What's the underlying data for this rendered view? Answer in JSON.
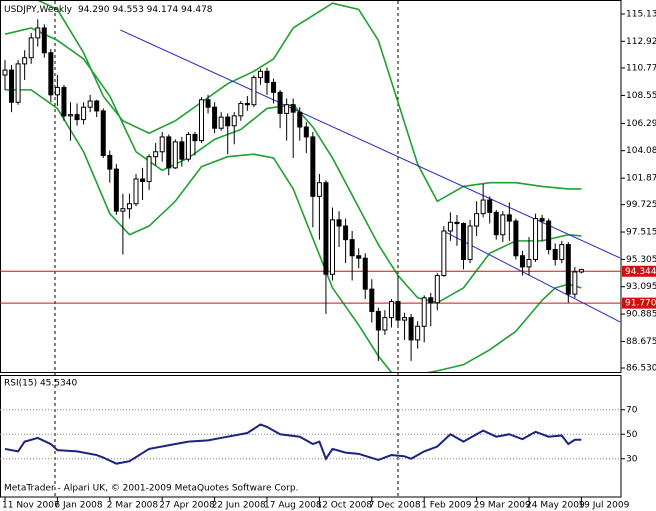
{
  "chart_data": {
    "type": "candlestick",
    "title": "USDJPY,Weekly",
    "quote": "94.290 94.553 94.174 94.478",
    "categories": [
      "11 Nov 2007",
      null,
      null,
      null,
      null,
      null,
      null,
      null,
      "6 Jan 2008",
      null,
      null,
      null,
      null,
      null,
      null,
      null,
      "2 Mar 2008",
      null,
      null,
      null,
      null,
      null,
      null,
      null,
      "27 Apr 2008",
      null,
      null,
      null,
      null,
      null,
      null,
      null,
      "22 Jun 2008",
      null,
      null,
      null,
      null,
      null,
      null,
      null,
      "17 Aug 2008",
      null,
      null,
      null,
      null,
      null,
      null,
      null,
      "12 Oct 2008",
      null,
      null,
      null,
      null,
      null,
      null,
      null,
      "7 Dec 2008",
      null,
      null,
      null,
      null,
      null,
      null,
      null,
      "1 Feb 2009",
      null,
      null,
      null,
      null,
      null,
      null,
      null,
      "29 Mar 2009",
      null,
      null,
      null,
      null,
      null,
      null,
      null,
      "24 May 2009",
      null,
      null,
      null,
      null,
      null,
      null,
      null,
      "19 Jul 2009"
    ],
    "ohlc": [
      [
        110.2,
        111.4,
        109.0,
        110.6
      ],
      [
        110.6,
        111.0,
        107.2,
        108.0
      ],
      [
        108.0,
        111.4,
        107.8,
        111.1
      ],
      [
        111.1,
        112.2,
        109.8,
        111.6
      ],
      [
        111.6,
        113.6,
        111.1,
        113.2
      ],
      [
        113.2,
        114.7,
        112.5,
        114.0
      ],
      [
        114.0,
        114.3,
        111.6,
        112.0
      ],
      [
        112.0,
        112.3,
        108.0,
        108.6
      ],
      [
        108.6,
        110.2,
        107.7,
        109.2
      ],
      [
        109.2,
        109.4,
        106.5,
        106.9
      ],
      [
        106.9,
        108.0,
        104.9,
        107.0
      ],
      [
        107.0,
        107.9,
        106.1,
        106.6
      ],
      [
        106.6,
        108.0,
        106.2,
        107.6
      ],
      [
        107.6,
        108.6,
        107.2,
        108.1
      ],
      [
        108.1,
        108.2,
        106.8,
        107.3
      ],
      [
        107.3,
        107.5,
        103.5,
        103.7
      ],
      [
        103.7,
        104.1,
        101.5,
        102.6
      ],
      [
        102.6,
        103.0,
        98.9,
        99.2
      ],
      [
        99.2,
        100.6,
        95.7,
        99.4
      ],
      [
        99.4,
        100.6,
        98.6,
        99.8
      ],
      [
        99.8,
        102.2,
        99.6,
        101.8
      ],
      [
        101.8,
        102.7,
        100.1,
        101.6
      ],
      [
        101.6,
        103.8,
        100.9,
        103.6
      ],
      [
        103.6,
        104.7,
        102.9,
        104.0
      ],
      [
        104.0,
        105.6,
        103.2,
        105.2
      ],
      [
        105.2,
        105.4,
        102.1,
        102.7
      ],
      [
        102.7,
        105.0,
        102.6,
        104.8
      ],
      [
        104.8,
        105.2,
        102.8,
        103.4
      ],
      [
        103.4,
        105.6,
        103.2,
        105.4
      ],
      [
        105.4,
        105.6,
        103.7,
        104.9
      ],
      [
        104.9,
        108.4,
        104.7,
        108.2
      ],
      [
        108.2,
        108.6,
        107.1,
        107.6
      ],
      [
        107.6,
        108.0,
        105.5,
        105.9
      ],
      [
        105.9,
        107.2,
        105.7,
        106.8
      ],
      [
        106.8,
        107.1,
        103.8,
        106.1
      ],
      [
        106.1,
        107.2,
        104.6,
        106.9
      ],
      [
        106.9,
        108.1,
        106.5,
        107.9
      ],
      [
        107.9,
        108.5,
        107.3,
        107.8
      ],
      [
        107.8,
        110.2,
        107.6,
        110.0
      ],
      [
        110.0,
        110.7,
        109.4,
        110.5
      ],
      [
        110.5,
        110.8,
        108.6,
        109.6
      ],
      [
        109.6,
        109.9,
        107.9,
        108.8
      ],
      [
        108.8,
        109.0,
        105.9,
        107.1
      ],
      [
        107.1,
        108.3,
        104.9,
        107.8
      ],
      [
        107.8,
        108.3,
        103.5,
        107.2
      ],
      [
        107.2,
        107.6,
        104.9,
        106.0
      ],
      [
        106.0,
        106.4,
        103.9,
        105.2
      ],
      [
        105.2,
        105.6,
        97.9,
        100.4
      ],
      [
        100.4,
        102.2,
        96.9,
        101.5
      ],
      [
        101.5,
        101.7,
        90.9,
        94.1
      ],
      [
        94.1,
        99.5,
        93.6,
        98.5
      ],
      [
        98.5,
        99.2,
        96.3,
        98.0
      ],
      [
        98.0,
        98.6,
        95.0,
        96.9
      ],
      [
        96.9,
        97.6,
        93.6,
        95.6
      ],
      [
        95.6,
        96.2,
        94.6,
        95.4
      ],
      [
        95.4,
        95.8,
        92.1,
        92.9
      ],
      [
        92.9,
        93.7,
        90.2,
        91.1
      ],
      [
        91.1,
        91.4,
        87.1,
        89.6
      ],
      [
        89.6,
        91.2,
        89.2,
        90.6
      ],
      [
        90.6,
        92.1,
        89.8,
        91.9
      ],
      [
        91.9,
        94.0,
        89.9,
        90.4
      ],
      [
        90.4,
        91.0,
        88.8,
        90.6
      ],
      [
        90.6,
        90.9,
        87.1,
        88.8
      ],
      [
        88.8,
        90.3,
        88.1,
        89.9
      ],
      [
        89.9,
        92.4,
        88.6,
        92.2
      ],
      [
        92.2,
        92.6,
        89.9,
        91.8
      ],
      [
        91.8,
        94.2,
        91.2,
        94.0
      ],
      [
        94.0,
        98.0,
        93.9,
        97.6
      ],
      [
        97.6,
        99.1,
        96.8,
        98.3
      ],
      [
        98.3,
        98.9,
        96.4,
        98.2
      ],
      [
        98.2,
        98.3,
        94.5,
        95.3
      ],
      [
        95.3,
        98.5,
        95.0,
        98.0
      ],
      [
        98.0,
        100.0,
        97.2,
        99.0
      ],
      [
        99.0,
        101.4,
        98.7,
        100.1
      ],
      [
        100.1,
        100.4,
        98.2,
        99.1
      ],
      [
        99.1,
        99.3,
        96.9,
        97.3
      ],
      [
        97.3,
        99.2,
        96.7,
        98.9
      ],
      [
        98.9,
        99.9,
        96.8,
        98.4
      ],
      [
        98.4,
        98.6,
        95.3,
        95.6
      ],
      [
        95.6,
        96.0,
        94.0,
        94.7
      ],
      [
        94.7,
        97.1,
        94.0,
        95.3
      ],
      [
        95.3,
        99.0,
        95.1,
        98.6
      ],
      [
        98.6,
        98.9,
        96.8,
        98.4
      ],
      [
        98.4,
        98.6,
        95.7,
        96.1
      ],
      [
        96.1,
        96.6,
        94.8,
        95.3
      ],
      [
        95.3,
        96.8,
        95.0,
        96.5
      ],
      [
        96.5,
        96.7,
        91.8,
        92.5
      ],
      [
        92.5,
        94.7,
        92.2,
        94.29
      ],
      [
        94.29,
        94.553,
        94.174,
        94.478
      ]
    ],
    "ylim": [
      86.126,
      116.099
    ],
    "yticks": [
      {
        "value": 115.13,
        "label": "115.130"
      },
      {
        "value": 112.925,
        "label": "112.925"
      },
      {
        "value": 110.77,
        "label": "110.770"
      },
      {
        "value": 108.55,
        "label": "108.550"
      },
      {
        "value": 106.29,
        "label": "106.290"
      },
      {
        "value": 104.085,
        "label": "104.085"
      },
      {
        "value": 101.87,
        "label": "101.870"
      },
      {
        "value": 99.725,
        "label": "99.725"
      },
      {
        "value": 97.515,
        "label": "97.515"
      },
      {
        "value": 95.305,
        "label": "95.305"
      },
      {
        "value": 93.095,
        "label": "93.095"
      },
      {
        "value": 90.885,
        "label": "90.885"
      },
      {
        "value": 88.675,
        "label": "88.675"
      },
      {
        "value": 86.53,
        "label": "86.530"
      }
    ],
    "bands": [
      {
        "color": "#1fa032",
        "x": [
          0,
          4,
          8,
          12,
          15,
          18,
          22,
          26,
          30,
          34,
          38,
          41,
          44,
          47,
          50,
          54,
          57,
          60,
          63,
          66,
          70,
          74,
          78,
          82,
          86,
          88
        ],
        "values": [
          117.5,
          116.5,
          115.5,
          112,
          108.5,
          106.5,
          105.5,
          106.5,
          108,
          109.5,
          110.5,
          111.5,
          114,
          115,
          116,
          115.5,
          113,
          108,
          103,
          100,
          101.2,
          101.5,
          101.5,
          101.2,
          101.0,
          101.0
        ]
      },
      {
        "color": "#1fa032",
        "x": [
          0,
          4,
          8,
          12,
          16,
          20,
          24,
          28,
          32,
          36,
          40,
          44,
          47,
          50,
          54,
          57,
          60,
          63,
          66,
          70,
          74,
          78,
          82,
          86,
          88
        ],
        "values": [
          113.5,
          114,
          113,
          111.5,
          108.5,
          104,
          102.5,
          103.5,
          105,
          105.8,
          107.5,
          107.8,
          106,
          103.5,
          99.5,
          96.5,
          94,
          92.2,
          91.8,
          93,
          95.8,
          96.8,
          96.8,
          97.3,
          97.2
        ]
      },
      {
        "color": "#1fa032",
        "x": [
          0,
          4,
          8,
          12,
          16,
          19,
          22,
          26,
          30,
          34,
          38,
          41,
          44,
          47,
          50,
          54,
          57,
          60,
          63,
          66,
          70,
          74,
          78,
          82,
          84,
          86,
          88
        ],
        "values": [
          109,
          109,
          107.5,
          104,
          99,
          97.3,
          98,
          100,
          102.8,
          103.6,
          103.8,
          103.5,
          101,
          97,
          93,
          90,
          87.5,
          85.5,
          86.0,
          86.3,
          86.8,
          88.0,
          89.5,
          92,
          93,
          93.3,
          93.0
        ]
      }
    ],
    "trendlines": [
      {
        "color": "#2828c8",
        "x": [
          17.6,
          93.9
        ],
        "values": [
          113.84,
          95.42
        ]
      },
      {
        "color": "#2828c8",
        "x": [
          67.2,
          93.9
        ],
        "values": [
          97.52,
          90.25
        ]
      }
    ],
    "levels": [
      {
        "value": 94.344,
        "label": "94.344",
        "color": "#d01010"
      },
      {
        "value": 91.77,
        "label": "91.770",
        "color": "#d01010"
      }
    ],
    "rsi": {
      "title": "RSI(15) 45.5340",
      "color": "#1a237e",
      "x": [
        0,
        2,
        3,
        5,
        7,
        8,
        11,
        14,
        15,
        17,
        19,
        22,
        25,
        28,
        31,
        34,
        37,
        39,
        40,
        42,
        45,
        47,
        48,
        49,
        50,
        52,
        54,
        57,
        59,
        61,
        62,
        64,
        66,
        68,
        70,
        72,
        73,
        75,
        77,
        79,
        81,
        83,
        85,
        86,
        87,
        88
      ],
      "values": [
        38,
        36,
        44,
        47,
        42,
        37,
        36,
        33,
        31,
        26,
        28,
        38,
        41,
        44,
        45,
        48,
        51,
        58,
        56,
        50,
        48,
        42,
        44,
        30,
        38,
        35,
        34,
        29,
        33,
        32,
        30,
        36,
        40,
        50,
        44,
        50,
        53,
        48,
        50,
        46,
        52,
        48,
        49,
        42,
        45.5,
        45.534
      ],
      "ylim": [
        0,
        100
      ],
      "yticks": [
        30,
        50,
        70
      ]
    },
    "footer": "MetaTrader - Alpari UK, © 2001-2009 MetaQuotes Software Corp."
  }
}
